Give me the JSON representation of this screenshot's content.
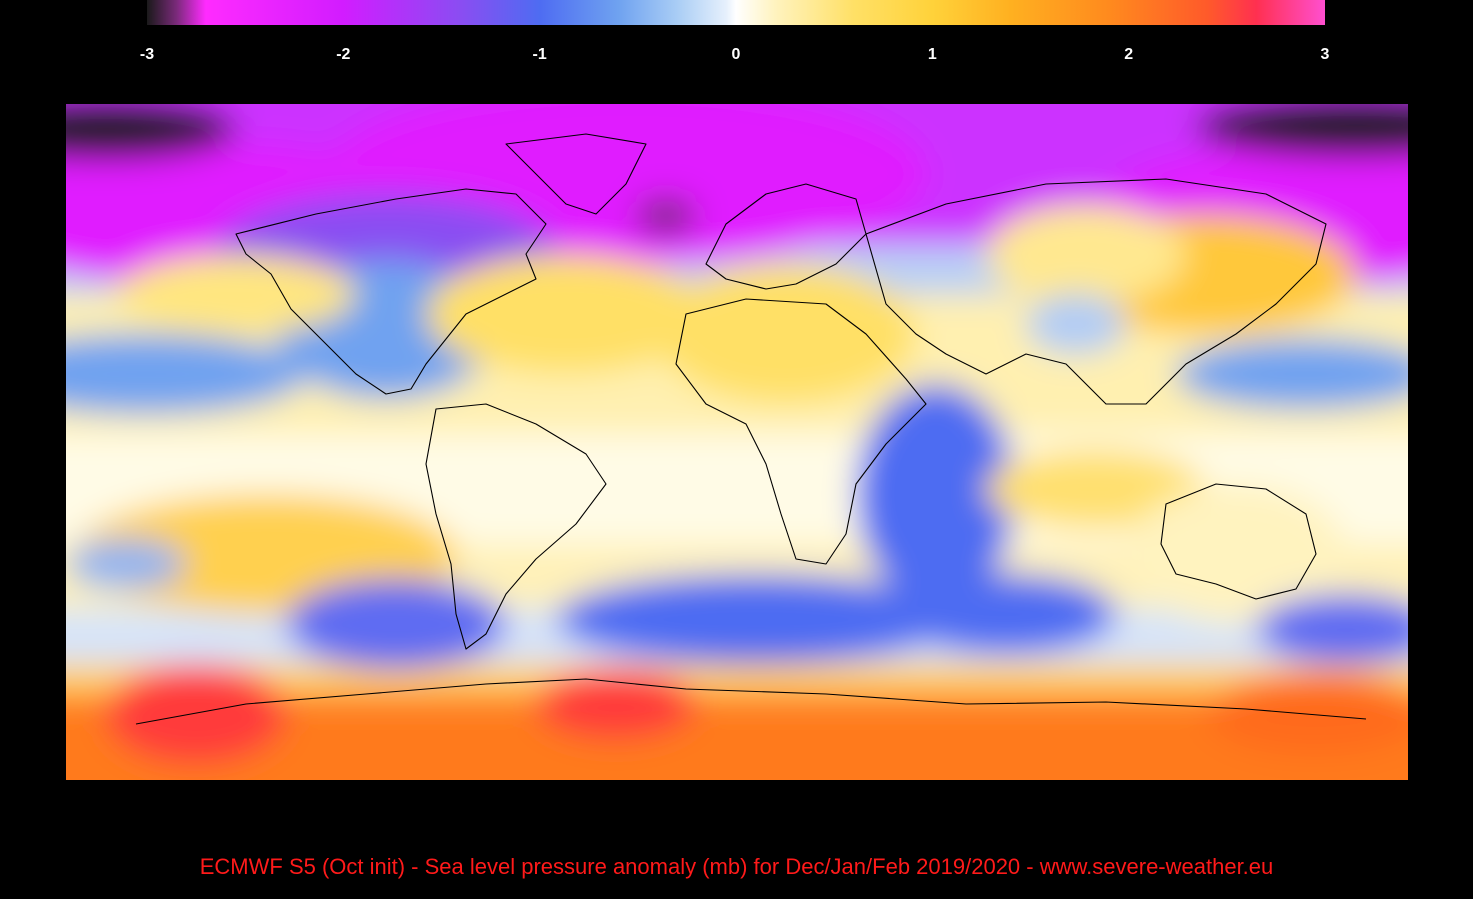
{
  "colorbar": {
    "min": -3,
    "max": 3,
    "tick_labels": [
      "-3",
      "-2",
      "-1",
      "0",
      "1",
      "2",
      "3"
    ],
    "stops": [
      {
        "value": -3.0,
        "color": "#1a1a1a"
      },
      {
        "value": -2.85,
        "color": "#7a2a7a"
      },
      {
        "value": -2.7,
        "color": "#ff2bff"
      },
      {
        "value": -2.0,
        "color": "#d21cff"
      },
      {
        "value": -1.4,
        "color": "#8a4df2"
      },
      {
        "value": -1.0,
        "color": "#4e6cf2"
      },
      {
        "value": -0.6,
        "color": "#6fa2f0"
      },
      {
        "value": -0.3,
        "color": "#a9cdf5"
      },
      {
        "value": -0.05,
        "color": "#e6f0fc"
      },
      {
        "value": 0.0,
        "color": "#ffffff"
      },
      {
        "value": 0.2,
        "color": "#fff3bf"
      },
      {
        "value": 0.6,
        "color": "#ffe066"
      },
      {
        "value": 1.0,
        "color": "#ffd23a"
      },
      {
        "value": 1.4,
        "color": "#ffb020"
      },
      {
        "value": 1.9,
        "color": "#ff8a1e"
      },
      {
        "value": 2.4,
        "color": "#ff5a2a"
      },
      {
        "value": 2.65,
        "color": "#ff3050"
      },
      {
        "value": 3.0,
        "color": "#ff4fd0"
      }
    ]
  },
  "map": {
    "region": "global",
    "projection": "equirectangular",
    "variable": "Sea level pressure anomaly",
    "units": "mb",
    "anomaly_regions": [
      {
        "area": "Greenland / North Atlantic",
        "anomaly": -2.3,
        "color": "#e01cff"
      },
      {
        "area": "Alaska / North Pacific",
        "anomaly": -2.2,
        "color": "#e01cff"
      },
      {
        "area": "Arctic (far north-west)",
        "anomaly": -3.0,
        "color": "#1a1a1a"
      },
      {
        "area": "Siberia (far north-east)",
        "anomaly": -3.0,
        "color": "#1a1a1a"
      },
      {
        "area": "Eastern Canada / Hudson Bay",
        "anomaly": -1.3,
        "color": "#8a4df2"
      },
      {
        "area": "United States",
        "anomaly": -0.6,
        "color": "#6fa2f0"
      },
      {
        "area": "North Atlantic (subtropical)",
        "anomaly": 0.8,
        "color": "#ffe066"
      },
      {
        "area": "North Africa / Mediterranean",
        "anomaly": 0.7,
        "color": "#ffe066"
      },
      {
        "area": "East Asia / Japan",
        "anomaly": 1.0,
        "color": "#ffc83a"
      },
      {
        "area": "Western Indian Ocean",
        "anomaly": -1.0,
        "color": "#4e6cf2"
      },
      {
        "area": "South Atlantic / Southern Ocean",
        "anomaly": -1.6,
        "color": "#4e6cf2"
      },
      {
        "area": "South Pacific (Drake Passage)",
        "anomaly": -1.7,
        "color": "#5e6cf2"
      },
      {
        "area": "Australia",
        "anomaly": 0.3,
        "color": "#fff3bf"
      },
      {
        "area": "Antarctica",
        "anomaly": 2.2,
        "color": "#ff7a1e"
      },
      {
        "area": "South Pacific (west of Chile)",
        "anomaly": 2.6,
        "color": "#ff3a3a"
      }
    ]
  },
  "caption": {
    "text": "ECMWF S5 (Oct init) -  Sea level pressure anomaly (mb)  for Dec/Jan/Feb 2019/2020  -  www.severe-weather.eu",
    "color": "#ff1a1a"
  }
}
